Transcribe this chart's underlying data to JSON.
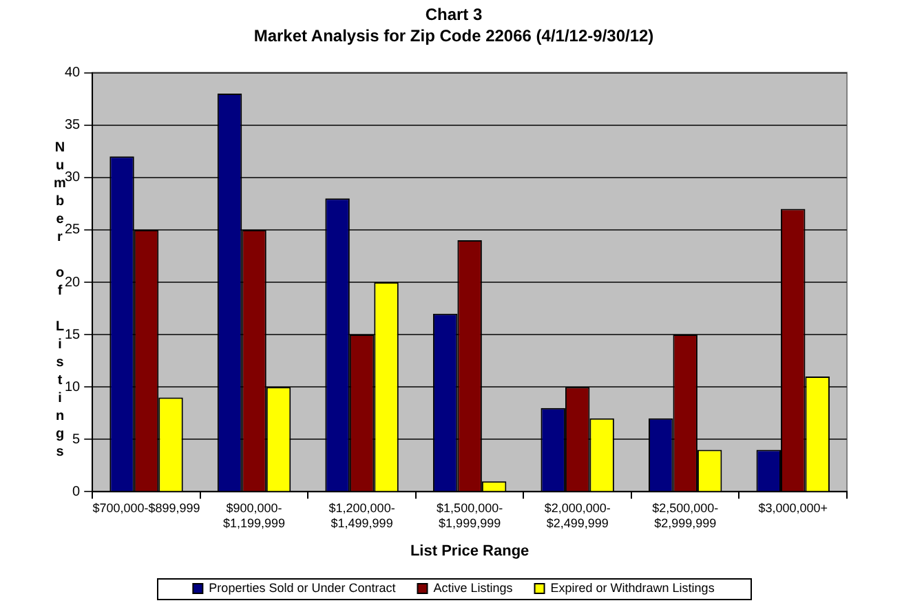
{
  "chart_data": {
    "type": "bar",
    "title": "Chart 3",
    "subtitle": "Market Analysis for Zip Code 22066 (4/1/12-9/30/12)",
    "xlabel": "List Price Range",
    "ylabel": "Number of Listings",
    "categories": [
      "$700,000-$899,999",
      "$900,000-\n$1,199,999",
      "$1,200,000-\n$1,499,999",
      "$1,500,000-\n$1,999,999",
      "$2,000,000-\n$2,499,999",
      "$2,500,000-\n$2,999,999",
      "$3,000,000+"
    ],
    "series": [
      {
        "name": "Properties Sold or Under Contract",
        "color": "#000080",
        "values": [
          32,
          38,
          28,
          17,
          8,
          7,
          4
        ]
      },
      {
        "name": "Active Listings",
        "color": "#800000",
        "values": [
          25,
          25,
          15,
          24,
          10,
          15,
          27
        ]
      },
      {
        "name": "Expired or Withdrawn Listings",
        "color": "#ffff00",
        "values": [
          9,
          10,
          20,
          1,
          7,
          4,
          11
        ]
      }
    ],
    "ylim": [
      0,
      40
    ],
    "yticks": [
      0,
      5,
      10,
      15,
      20,
      25,
      30,
      35,
      40
    ],
    "grid": "y",
    "legend": "bottom"
  }
}
